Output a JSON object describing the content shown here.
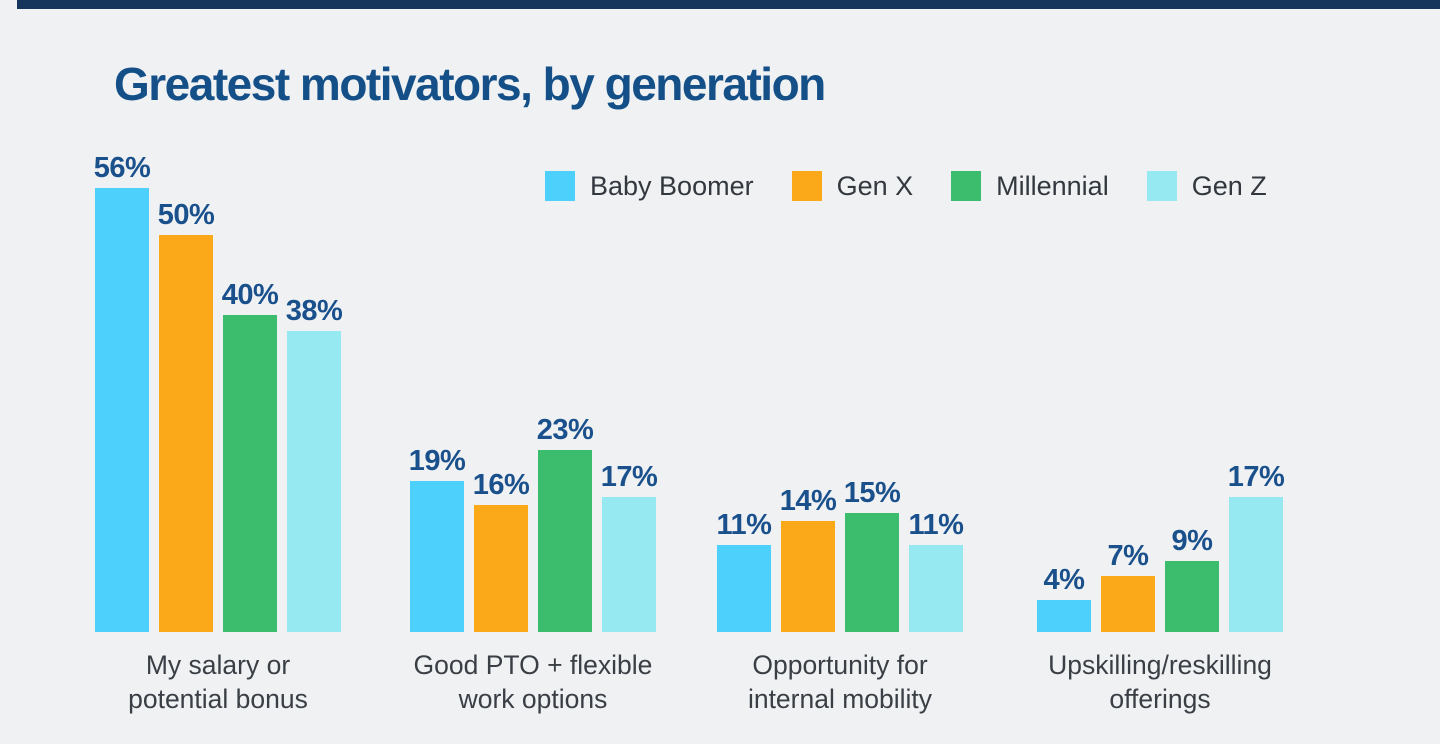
{
  "title": "Greatest motivators, by generation",
  "colors": {
    "background": "#EFF1F3",
    "top_accent_bar": "#16355D",
    "title_text": "#144F88",
    "value_label_text": "#1A508C",
    "body_text": "#3A3F45",
    "legend_text": "#33383E"
  },
  "legend": {
    "position": "top",
    "items": [
      {
        "label": "Baby Boomer",
        "color": "#4DD1FC"
      },
      {
        "label": "Gen X",
        "color": "#FBA919"
      },
      {
        "label": "Millennial",
        "color": "#3CBD6E"
      },
      {
        "label": "Gen Z",
        "color": "#96E9F1"
      }
    ]
  },
  "chart_data": {
    "type": "bar",
    "title": "Greatest motivators, by generation",
    "categories": [
      "My salary or\npotential bonus",
      "Good PTO + flexible\nwork options",
      "Opportunity for\ninternal mobility",
      "Upskilling/reskilling\nofferings"
    ],
    "series": [
      {
        "name": "Baby Boomer",
        "color": "#4DD1FC",
        "values": [
          56,
          19,
          11,
          4
        ]
      },
      {
        "name": "Gen X",
        "color": "#FBA919",
        "values": [
          50,
          16,
          14,
          7
        ]
      },
      {
        "name": "Millennial",
        "color": "#3CBD6E",
        "values": [
          40,
          23,
          15,
          9
        ]
      },
      {
        "name": "Gen Z",
        "color": "#96E9F1",
        "values": [
          38,
          17,
          11,
          17
        ]
      }
    ],
    "value_suffix": "%",
    "data_labels": [
      "56%",
      "50%",
      "40%",
      "38%",
      "19%",
      "16%",
      "23%",
      "17%",
      "11%",
      "14%",
      "15%",
      "11%",
      "4%",
      "7%",
      "9%",
      "17%"
    ],
    "ylim": [
      0,
      60
    ],
    "grid": false,
    "axes_visible": false,
    "xlabel": "",
    "ylabel": ""
  }
}
